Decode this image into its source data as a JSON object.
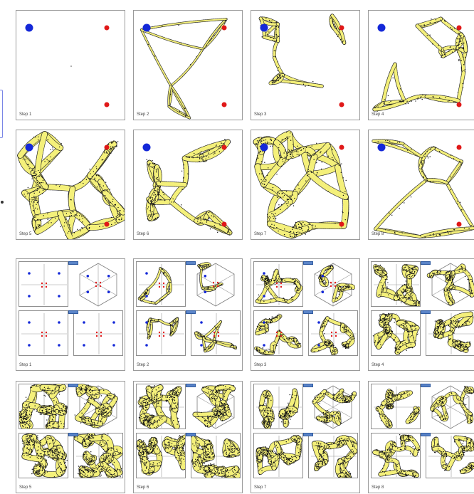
{
  "simulation_2d": {
    "steps": [
      {
        "label": "Step 1",
        "density": 0
      },
      {
        "label": "Step 2",
        "density": 0.08
      },
      {
        "label": "Step 3",
        "density": 0.35
      },
      {
        "label": "Step 4",
        "density": 0.45
      },
      {
        "label": "Step 5",
        "density": 0.95
      },
      {
        "label": "Step 6",
        "density": 0.7
      },
      {
        "label": "Step 7",
        "density": 1.0
      },
      {
        "label": "Step 8",
        "density": 0.3
      }
    ]
  },
  "simulation_3d": {
    "steps": [
      {
        "label": "Step 1",
        "density": 0
      },
      {
        "label": "Step 2",
        "density": 0.15
      },
      {
        "label": "Step 3",
        "density": 0.45
      },
      {
        "label": "Step 4",
        "density": 0.7
      },
      {
        "label": "Step 5",
        "density": 1.0
      },
      {
        "label": "Step 6",
        "density": 0.95
      },
      {
        "label": "Step 7",
        "density": 0.7
      },
      {
        "label": "Step 8",
        "density": 0.6
      }
    ]
  },
  "colors": {
    "source_node": "#1428d8",
    "food_node": "#e01818",
    "network_fill": "#f4f07a",
    "network_edge": "#2a2a2a",
    "frame": "#9a9a9a",
    "tag": "#5a84c8"
  },
  "icons": [
    "source-node-icon",
    "food-node-icon",
    "view-tag-icon"
  ]
}
